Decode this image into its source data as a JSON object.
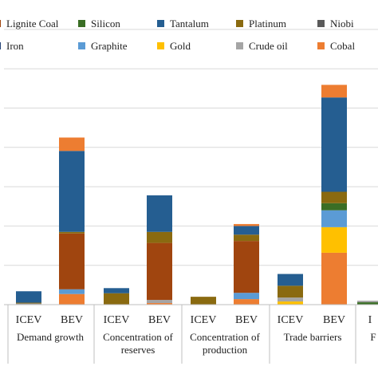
{
  "chart_data": {
    "type": "bar",
    "stacked": true,
    "title": "",
    "xlabel": "",
    "ylabel": "",
    "grid": true,
    "legend_position": "top",
    "legend": [
      {
        "name": "Lignite Coal",
        "color": "#a0450f"
      },
      {
        "name": "Silicon",
        "color": "#3a6e25"
      },
      {
        "name": "Tantalum",
        "color": "#255e91"
      },
      {
        "name": "Platinum",
        "color": "#8a6a10"
      },
      {
        "name": "Niobi",
        "color": "#5a5a5a"
      },
      {
        "name": "Iron",
        "color": "#264478"
      },
      {
        "name": "Graphite",
        "color": "#5b9bd5"
      },
      {
        "name": "Gold",
        "color": "#ffc000"
      },
      {
        "name": "Crude oil",
        "color": "#a5a5a5"
      },
      {
        "name": "Cobal",
        "color": "#ed7d31"
      }
    ],
    "groups": [
      "Demand growth",
      "Concentration of reserves",
      "Concentration of production",
      "Trade barriers",
      "F"
    ],
    "categories": [
      {
        "label": "ICEV",
        "group": 0
      },
      {
        "label": "BEV",
        "group": 0
      },
      {
        "label": "ICEV",
        "group": 1
      },
      {
        "label": "BEV",
        "group": 1
      },
      {
        "label": "ICEV",
        "group": 2
      },
      {
        "label": "BEV",
        "group": 2
      },
      {
        "label": "ICEV",
        "group": 3
      },
      {
        "label": "BEV",
        "group": 3
      },
      {
        "label": "I",
        "group": 4
      }
    ],
    "y_gridlines": 7,
    "series_values_order": "bottom-to-top stack of segments per category, values in gridline units",
    "stacks": [
      [
        {
          "series": "Crude oil",
          "value": 0.03
        },
        {
          "series": "Platinum",
          "value": 0.02
        },
        {
          "series": "Tantalum",
          "value": 0.29
        }
      ],
      [
        {
          "series": "Cobal",
          "value": 0.27
        },
        {
          "series": "Graphite",
          "value": 0.12
        },
        {
          "series": "Lignite Coal",
          "value": 1.42
        },
        {
          "series": "Platinum",
          "value": 0.04
        },
        {
          "series": "Tantalum",
          "value": 2.06
        },
        {
          "series": "Cobal",
          "value": 0.34
        }
      ],
      [
        {
          "series": "Platinum",
          "value": 0.29
        },
        {
          "series": "Tantalum",
          "value": 0.13
        }
      ],
      [
        {
          "series": "Cobal",
          "value": 0.04
        },
        {
          "series": "Crude oil",
          "value": 0.08
        },
        {
          "series": "Lignite Coal",
          "value": 1.45
        },
        {
          "series": "Platinum",
          "value": 0.28
        },
        {
          "series": "Tantalum",
          "value": 0.93
        }
      ],
      [
        {
          "series": "Platinum",
          "value": 0.2
        }
      ],
      [
        {
          "series": "Cobal",
          "value": 0.14
        },
        {
          "series": "Graphite",
          "value": 0.16
        },
        {
          "series": "Lignite Coal",
          "value": 1.32
        },
        {
          "series": "Platinum",
          "value": 0.16
        },
        {
          "series": "Tantalum",
          "value": 0.22
        },
        {
          "series": "Cobal",
          "value": 0.05
        }
      ],
      [
        {
          "series": "Gold",
          "value": 0.08
        },
        {
          "series": "Crude oil",
          "value": 0.1
        },
        {
          "series": "Platinum",
          "value": 0.3
        },
        {
          "series": "Tantalum",
          "value": 0.3
        }
      ],
      [
        {
          "series": "Cobal",
          "value": 1.32
        },
        {
          "series": "Gold",
          "value": 0.65
        },
        {
          "series": "Graphite",
          "value": 0.43
        },
        {
          "series": "Silicon",
          "value": 0.18
        },
        {
          "series": "Platinum",
          "value": 0.29
        },
        {
          "series": "Tantalum",
          "value": 2.4
        },
        {
          "series": "Cobal",
          "value": 0.32
        }
      ],
      [
        {
          "series": "Silicon",
          "value": 0.06
        },
        {
          "series": "Crude oil",
          "value": 0.04
        }
      ]
    ]
  }
}
